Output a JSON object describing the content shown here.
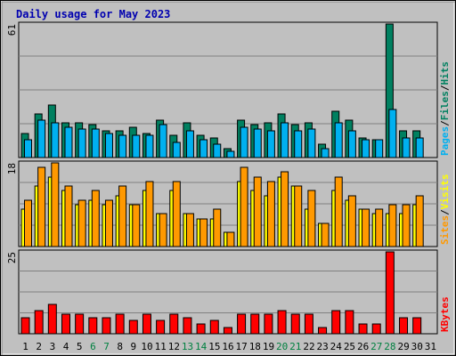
{
  "title": "Daily usage for May 2023",
  "colors": {
    "background": "#c0c0c0",
    "grid": "#808080",
    "hits": "#00b0f0",
    "files": "#008060",
    "visits": "#ffff00",
    "sites": "#ff9900",
    "kbytes": "#ff0000",
    "title": "#0000b0",
    "weekend_label": "#008040"
  },
  "chart_data": [
    {
      "type": "bar",
      "title": "Daily usage for May 2023",
      "panel": "pages-files-hits",
      "ylabel_parts": [
        "Pages",
        "/",
        "Files",
        "/",
        "Hits"
      ],
      "ymax_label": "61",
      "ylim": [
        0,
        61
      ],
      "categories": [
        "1",
        "2",
        "3",
        "4",
        "5",
        "6",
        "7",
        "8",
        "9",
        "10",
        "11",
        "12",
        "13",
        "14",
        "15",
        "16",
        "17",
        "18",
        "19",
        "20",
        "21",
        "22",
        "23",
        "24",
        "25",
        "26",
        "27",
        "28",
        "29",
        "30",
        "31"
      ],
      "series": [
        {
          "name": "Files",
          "values": [
            11,
            20,
            24,
            16,
            16,
            15,
            12,
            12,
            14,
            11,
            17,
            10,
            16,
            10,
            9,
            4,
            17,
            15,
            16,
            20,
            15,
            16,
            6,
            21,
            17,
            9,
            8,
            61,
            12,
            12,
            0
          ]
        },
        {
          "name": "Hits",
          "values": [
            8,
            17,
            16,
            14,
            13,
            13,
            11,
            10,
            10,
            10,
            15,
            7,
            12,
            8,
            6,
            3,
            14,
            13,
            12,
            16,
            12,
            13,
            4,
            16,
            12,
            8,
            8,
            22,
            9,
            9,
            0
          ]
        }
      ]
    },
    {
      "type": "bar",
      "panel": "sites-visits",
      "ylabel_parts": [
        "Sites",
        "/",
        "Visits"
      ],
      "ymax_label": "18",
      "ylim": [
        0,
        18
      ],
      "categories": [
        "1",
        "2",
        "3",
        "4",
        "5",
        "6",
        "7",
        "8",
        "9",
        "10",
        "11",
        "12",
        "13",
        "14",
        "15",
        "16",
        "17",
        "18",
        "19",
        "20",
        "21",
        "22",
        "23",
        "24",
        "25",
        "26",
        "27",
        "28",
        "29",
        "30",
        "31"
      ],
      "series": [
        {
          "name": "Visits",
          "values": [
            8,
            13,
            15,
            12,
            9,
            10,
            9,
            11,
            9,
            12,
            7,
            12,
            7,
            6,
            6,
            3,
            14,
            12,
            11,
            15,
            13,
            8,
            5,
            12,
            10,
            8,
            7,
            7,
            7,
            9,
            0
          ]
        },
        {
          "name": "Sites",
          "values": [
            10,
            17,
            18,
            13,
            10,
            12,
            10,
            13,
            9,
            14,
            7,
            14,
            7,
            6,
            8,
            3,
            17,
            15,
            14,
            16,
            13,
            12,
            5,
            15,
            11,
            8,
            8,
            9,
            9,
            11,
            0
          ]
        }
      ]
    },
    {
      "type": "bar",
      "panel": "kbytes",
      "ylabel": "KBytes",
      "ymax_label": "25",
      "ylim": [
        0,
        25
      ],
      "categories": [
        "1",
        "2",
        "3",
        "4",
        "5",
        "6",
        "7",
        "8",
        "9",
        "10",
        "11",
        "12",
        "13",
        "14",
        "15",
        "16",
        "17",
        "18",
        "19",
        "20",
        "21",
        "22",
        "23",
        "24",
        "25",
        "26",
        "27",
        "28",
        "29",
        "30",
        "31"
      ],
      "series": [
        {
          "name": "KBytes",
          "values": [
            5,
            7,
            9,
            6,
            6,
            5,
            5,
            6,
            4,
            6,
            4,
            6,
            5,
            3,
            4,
            2,
            6,
            6,
            6,
            7,
            6,
            6,
            2,
            7,
            7,
            3,
            3,
            25,
            5,
            5,
            0
          ]
        }
      ]
    }
  ],
  "x_labels": [
    "1",
    "2",
    "3",
    "4",
    "5",
    "6",
    "7",
    "8",
    "9",
    "10",
    "11",
    "12",
    "13",
    "14",
    "15",
    "16",
    "17",
    "18",
    "19",
    "20",
    "21",
    "22",
    "23",
    "24",
    "25",
    "26",
    "27",
    "28",
    "29",
    "30",
    "31"
  ],
  "weekend_days": [
    "6",
    "7",
    "13",
    "14",
    "20",
    "21",
    "27",
    "28"
  ]
}
